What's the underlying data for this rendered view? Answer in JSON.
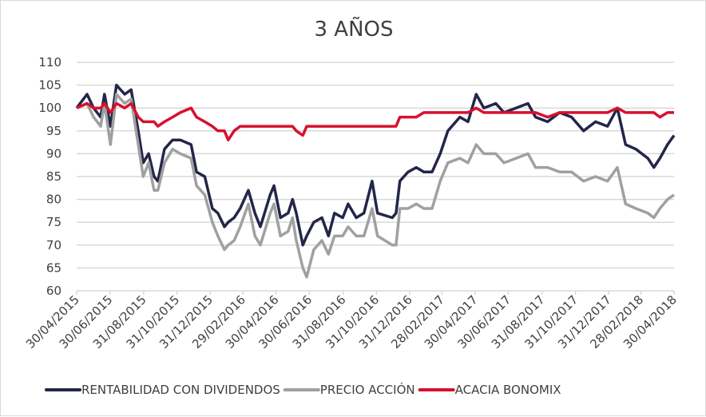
{
  "chart_data": {
    "type": "line",
    "title": "3 AÑOS",
    "xlabel": "",
    "ylabel": "",
    "ylim": [
      60,
      110
    ],
    "yticks": [
      60,
      65,
      70,
      75,
      80,
      85,
      90,
      95,
      100,
      105,
      110
    ],
    "xlim": [
      "2015-04-30",
      "2018-04-30"
    ],
    "xtick_dates": [
      "2015-04-30",
      "2015-06-30",
      "2015-08-31",
      "2015-10-31",
      "2015-12-31",
      "2016-02-29",
      "2016-04-30",
      "2016-06-30",
      "2016-08-31",
      "2016-10-31",
      "2016-12-31",
      "2017-02-28",
      "2017-04-30",
      "2017-06-30",
      "2017-08-31",
      "2017-10-31",
      "2017-12-31",
      "2018-02-28",
      "2018-04-30"
    ],
    "xtick_labels": [
      "30/04/2015",
      "30/06/2015",
      "31/08/2015",
      "31/10/2015",
      "31/12/2015",
      "29/02/2016",
      "30/04/2016",
      "30/06/2016",
      "31/08/2016",
      "31/10/2016",
      "31/12/2016",
      "28/02/2017",
      "30/04/2017",
      "30/06/2017",
      "31/08/2017",
      "31/10/2017",
      "31/12/2017",
      "28/02/2018",
      "30/04/2018"
    ],
    "grid": true,
    "legend": "bottom",
    "x": [
      "2015-04-30",
      "2015-05-19",
      "2015-05-31",
      "2015-06-13",
      "2015-06-20",
      "2015-07-01",
      "2015-07-12",
      "2015-07-27",
      "2015-08-08",
      "2015-08-21",
      "2015-08-30",
      "2015-09-09",
      "2015-09-19",
      "2015-09-26",
      "2015-10-08",
      "2015-10-23",
      "2015-11-06",
      "2015-11-26",
      "2015-12-06",
      "2015-12-21",
      "2016-01-04",
      "2016-01-14",
      "2016-01-26",
      "2016-02-02",
      "2016-02-13",
      "2016-02-24",
      "2016-03-10",
      "2016-03-22",
      "2016-04-01",
      "2016-04-19",
      "2016-04-26",
      "2016-05-08",
      "2016-05-22",
      "2016-05-30",
      "2016-06-06",
      "2016-06-18",
      "2016-06-25",
      "2016-07-08",
      "2016-07-23",
      "2016-08-04",
      "2016-08-15",
      "2016-08-30",
      "2016-09-09",
      "2016-09-24",
      "2016-10-08",
      "2016-10-23",
      "2016-11-02",
      "2016-11-29",
      "2016-12-06",
      "2016-12-13",
      "2016-12-28",
      "2017-01-12",
      "2017-01-26",
      "2017-02-10",
      "2017-02-25",
      "2017-03-11",
      "2017-04-02",
      "2017-04-17",
      "2017-05-02",
      "2017-05-16",
      "2017-06-07",
      "2017-06-22",
      "2017-07-14",
      "2017-08-05",
      "2017-08-19",
      "2017-09-10",
      "2017-10-02",
      "2017-10-24",
      "2017-11-15",
      "2017-12-07",
      "2017-12-29",
      "2018-01-16",
      "2018-01-31",
      "2018-02-19",
      "2018-03-13",
      "2018-03-24",
      "2018-04-04",
      "2018-04-18",
      "2018-04-30"
    ],
    "series": [
      {
        "name": "RENTABILIDAD CON DIVIDENDOS",
        "color": "#23264a",
        "values": [
          100,
          103,
          100,
          98,
          103,
          96,
          105,
          103,
          104,
          95,
          88,
          90,
          85,
          84,
          91,
          93,
          93,
          92,
          86,
          85,
          78,
          77,
          74,
          75,
          76,
          78,
          82,
          77,
          74,
          81,
          83,
          76,
          77,
          80,
          77,
          70,
          72,
          75,
          76,
          72,
          77,
          76,
          79,
          76,
          77,
          84,
          77,
          76,
          77,
          84,
          86,
          87,
          86,
          86,
          90,
          95,
          98,
          97,
          103,
          100,
          101,
          99,
          100,
          101,
          98,
          97,
          99,
          98,
          95,
          97,
          96,
          100,
          92,
          91,
          89,
          87,
          89,
          92,
          94
        ]
      },
      {
        "name": "PRECIO ACCIÓN",
        "color": "#a0a0a0",
        "values": [
          100,
          101,
          98,
          96,
          101,
          92,
          103,
          101,
          102,
          92,
          85,
          88,
          82,
          82,
          88,
          91,
          90,
          89,
          83,
          81,
          75,
          72,
          69,
          70,
          71,
          74,
          79,
          72,
          70,
          77,
          79,
          72,
          73,
          76,
          71,
          65,
          63,
          69,
          71,
          68,
          72,
          72,
          74,
          72,
          72,
          78,
          72,
          70,
          70,
          78,
          78,
          79,
          78,
          78,
          84,
          88,
          89,
          88,
          92,
          90,
          90,
          88,
          89,
          90,
          87,
          87,
          86,
          86,
          84,
          85,
          84,
          87,
          79,
          78,
          77,
          76,
          78,
          80,
          81
        ]
      },
      {
        "name": "ACACIA BONOMIX",
        "color": "#d8102e",
        "values": [
          100,
          101,
          100,
          100,
          101,
          99,
          101,
          100,
          101,
          98,
          97,
          97,
          97,
          96,
          97,
          98,
          99,
          100,
          98,
          97,
          96,
          95,
          95,
          93,
          95,
          96,
          96,
          96,
          96,
          96,
          96,
          96,
          96,
          96,
          95,
          94,
          96,
          96,
          96,
          96,
          96,
          96,
          96,
          96,
          96,
          96,
          96,
          96,
          96,
          98,
          98,
          98,
          99,
          99,
          99,
          99,
          99,
          99,
          100,
          99,
          99,
          99,
          99,
          99,
          99,
          98,
          99,
          99,
          99,
          99,
          99,
          100,
          99,
          99,
          99,
          99,
          98,
          99,
          99
        ]
      }
    ]
  }
}
